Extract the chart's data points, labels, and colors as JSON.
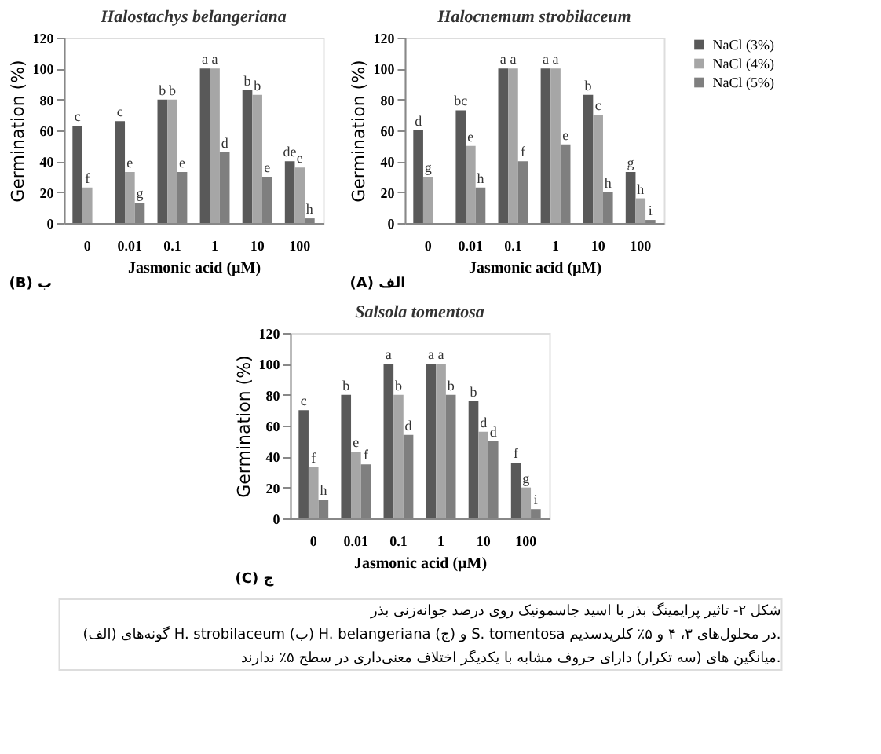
{
  "chart_data": [
    {
      "type": "bar",
      "title": "Halostachys belangeriana",
      "xlabel": "Jasmonic acid (µM)",
      "ylabel": "Germination (%)",
      "categories": [
        "0",
        "0.01",
        "0.1",
        "1",
        "10",
        "100"
      ],
      "ylim": [
        0,
        120
      ],
      "yticks": [
        0,
        20,
        40,
        60,
        80,
        100,
        120
      ],
      "grid": false,
      "legend": false,
      "annotations": [
        "(B) ب"
      ],
      "series": [
        {
          "color": "#595959",
          "values": [
            63,
            66,
            80,
            100,
            86,
            40
          ],
          "value_labels": [
            "c",
            "c",
            "b",
            "a",
            "b",
            "de"
          ]
        },
        {
          "color": "#a6a6a6",
          "values": [
            23,
            33,
            80,
            100,
            83,
            36
          ],
          "value_labels": [
            "f",
            "e",
            "b",
            "a",
            "b",
            "e"
          ]
        },
        {
          "color": "#7f7f7f",
          "values": [
            null,
            13,
            33,
            46,
            30,
            3
          ],
          "value_labels": [
            null,
            "g",
            "e",
            "d",
            "e",
            "h"
          ]
        }
      ]
    },
    {
      "type": "bar",
      "title": "Halocnemum strobilaceum",
      "xlabel": "Jasmonic acid (µM)",
      "ylabel": "Germination (%)",
      "categories": [
        "0",
        "0.01",
        "0.1",
        "1",
        "10",
        "100"
      ],
      "ylim": [
        0,
        120
      ],
      "yticks": [
        0,
        20,
        40,
        60,
        80,
        100,
        120
      ],
      "grid": false,
      "legend": "top right",
      "annotations": [
        "(A) الف"
      ],
      "series": [
        {
          "name": "NaCl (3%)",
          "color": "#595959",
          "values": [
            60,
            73,
            100,
            100,
            83,
            33
          ],
          "value_labels": [
            "d",
            "bc",
            "a",
            "a",
            "b",
            "g"
          ]
        },
        {
          "name": "NaCl (4%)",
          "color": "#a6a6a6",
          "values": [
            30,
            50,
            100,
            100,
            70,
            16
          ],
          "value_labels": [
            "g",
            "e",
            "a",
            "a",
            "c",
            "h"
          ]
        },
        {
          "name": "NaCl (5%)",
          "color": "#7f7f7f",
          "values": [
            null,
            23,
            40,
            51,
            20,
            2
          ],
          "value_labels": [
            null,
            "h",
            "f",
            "e",
            "h",
            "i"
          ]
        }
      ]
    },
    {
      "type": "bar",
      "title": "Salsola tomentosa",
      "xlabel": "Jasmonic acid (µM)",
      "ylabel": "Germination (%)",
      "categories": [
        "0",
        "0.01",
        "0.1",
        "1",
        "10",
        "100"
      ],
      "ylim": [
        0,
        120
      ],
      "yticks": [
        0,
        20,
        40,
        60,
        80,
        100,
        120
      ],
      "grid": false,
      "legend": false,
      "annotations": [
        "(C) ج",
        "شکل ۲- تاثیر پرایمینگ بذر با اسید جاسمونیک روی درصد جوانه‌زنی بذر",
        "گونه‌های (الف) H. strobilaceum (ب) H. belangeriana و (ج) S. tomentosa در محلول‌های ۳، ۴ و ۵٪ کلریدسدیم.",
        "میانگین های (سه تکرار) دارای حروف مشابه با یکدیگر اختلاف معنی‌داری در سطح ۵٪ ندارند."
      ],
      "series": [
        {
          "color": "#595959",
          "values": [
            70,
            80,
            100,
            100,
            76,
            36
          ],
          "value_labels": [
            "c",
            "b",
            "a",
            "a",
            "b",
            "f"
          ]
        },
        {
          "color": "#a6a6a6",
          "values": [
            33,
            43,
            80,
            100,
            56,
            20
          ],
          "value_labels": [
            "f",
            "e",
            "b",
            "a",
            "d",
            "g"
          ]
        },
        {
          "color": "#7f7f7f",
          "values": [
            12,
            35,
            54,
            80,
            50,
            6
          ],
          "value_labels": [
            "h",
            "f",
            "d",
            "b",
            "d",
            "i"
          ]
        }
      ]
    }
  ]
}
